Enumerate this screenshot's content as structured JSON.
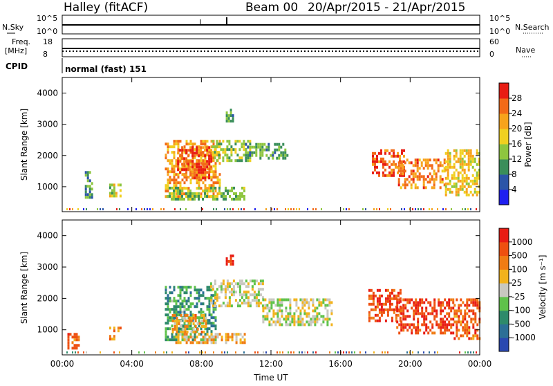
{
  "header": {
    "station": "Halley (fitACF)",
    "beam": "Beam 00",
    "date_range": "20/Apr/2015 - 21/Apr/2015"
  },
  "panels": {
    "nsky_label": "N.Sky",
    "nsky_ticks": [
      "10^5",
      "10^0"
    ],
    "nsearch_label": "N.Search",
    "freq_label_1": "Freq.",
    "freq_label_2": "[MHz]",
    "freq_ticks": [
      "18",
      "8"
    ],
    "nave_label": "Nave",
    "nave_ticks": [
      "60",
      "0"
    ],
    "cpid_label": "CPID",
    "cpid_value": "normal (fast) 151"
  },
  "chart_data": [
    {
      "type": "heatmap",
      "ylabel": "Slant Range [km]",
      "colorbar_label": "Power [dB]",
      "colorbar_ticks": [
        "4",
        "8",
        "12",
        "16",
        "20",
        "24",
        "28"
      ],
      "colorscale": [
        "#1f1ff0",
        "#2b55a8",
        "#3a8e5a",
        "#8ec63f",
        "#f0d020",
        "#f7a31c",
        "#f26a18",
        "#e81c14"
      ],
      "x_ticks": [
        "00:00",
        "04:00",
        "08:00",
        "12:00",
        "16:00",
        "20:00",
        "00:00"
      ],
      "y_ticks": [
        1000,
        2000,
        3000,
        4000
      ],
      "ylim": [
        200,
        4500
      ],
      "xlim": [
        0,
        24
      ],
      "patches": [
        {
          "t0": 5.9,
          "t1": 9.0,
          "r0": 700,
          "r1": 2500,
          "level": 0.7
        },
        {
          "t0": 6.6,
          "t1": 8.6,
          "r0": 1300,
          "r1": 2300,
          "level": 0.85
        },
        {
          "t0": 8.6,
          "t1": 10.8,
          "r0": 1800,
          "r1": 2500,
          "level": 0.45
        },
        {
          "t0": 6.0,
          "t1": 10.5,
          "r0": 600,
          "r1": 1000,
          "level": 0.4
        },
        {
          "t0": 10.5,
          "t1": 13.0,
          "r0": 1900,
          "r1": 2400,
          "level": 0.35
        },
        {
          "t0": 17.8,
          "t1": 19.6,
          "r0": 1400,
          "r1": 2200,
          "level": 0.85
        },
        {
          "t0": 19.3,
          "t1": 22.0,
          "r0": 1000,
          "r1": 1900,
          "level": 0.75
        },
        {
          "t0": 22.0,
          "t1": 24.0,
          "r0": 700,
          "r1": 2200,
          "level": 0.6
        },
        {
          "t0": 2.7,
          "t1": 3.3,
          "r0": 700,
          "r1": 1100,
          "level": 0.5
        },
        {
          "t0": 1.3,
          "t1": 1.7,
          "r0": 700,
          "r1": 1500,
          "level": 0.3
        },
        {
          "t0": 9.4,
          "t1": 9.8,
          "r0": 3100,
          "r1": 3500,
          "level": 0.35
        }
      ]
    },
    {
      "type": "heatmap",
      "ylabel": "Slant Range [km]",
      "xlabel": "Time UT",
      "colorbar_label": "Velocity  [m s⁻¹]",
      "colorbar_ticks": [
        "1000",
        "500",
        "100",
        "25",
        "-25",
        "-100",
        "-500",
        "-1000"
      ],
      "colorscale": [
        "#2a48b0",
        "#2c6f96",
        "#2e8a6a",
        "#5fc24a",
        "#c8c8c0",
        "#f2b21c",
        "#f07c14",
        "#ee5010",
        "#e81c14"
      ],
      "x_ticks": [
        "00:00",
        "04:00",
        "08:00",
        "12:00",
        "16:00",
        "20:00",
        "00:00"
      ],
      "y_ticks": [
        1000,
        2000,
        3000,
        4000
      ],
      "ylim": [
        200,
        4500
      ],
      "xlim": [
        0,
        24
      ],
      "patches": [
        {
          "t0": 5.9,
          "t1": 8.8,
          "r0": 700,
          "r1": 2400,
          "level": 0.3
        },
        {
          "t0": 6.3,
          "t1": 8.3,
          "r0": 900,
          "r1": 1500,
          "level": 0.65
        },
        {
          "t0": 6.5,
          "t1": 10.5,
          "r0": 600,
          "r1": 900,
          "level": 0.62
        },
        {
          "t0": 8.5,
          "t1": 11.5,
          "r0": 1800,
          "r1": 2600,
          "level": 0.5
        },
        {
          "t0": 11.5,
          "t1": 15.5,
          "r0": 1200,
          "r1": 2000,
          "level": 0.5
        },
        {
          "t0": 17.6,
          "t1": 19.5,
          "r0": 1300,
          "r1": 2300,
          "level": 0.85
        },
        {
          "t0": 19.2,
          "t1": 22.5,
          "r0": 900,
          "r1": 2000,
          "level": 0.88
        },
        {
          "t0": 22.5,
          "t1": 24.0,
          "r0": 700,
          "r1": 2000,
          "level": 0.8
        },
        {
          "t0": 2.7,
          "t1": 3.3,
          "r0": 700,
          "r1": 1100,
          "level": 0.72
        },
        {
          "t0": 0.3,
          "t1": 1.0,
          "r0": 400,
          "r1": 900,
          "level": 0.75
        },
        {
          "t0": 9.4,
          "t1": 9.8,
          "r0": 3100,
          "r1": 3400,
          "level": 0.95
        }
      ]
    }
  ]
}
